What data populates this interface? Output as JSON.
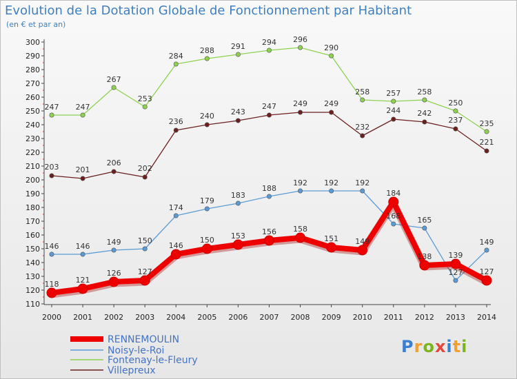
{
  "title": "Evolution de la Dotation Globale de Fonctionnement par Habitant",
  "subtitle": "(en € et par an)",
  "logo": {
    "text": "Proxiti"
  },
  "colors": {
    "RENNEMOULIN": "#ee0000",
    "Noisy-le-Roi": "#5b9bd5",
    "Fontenay-le-Fleury": "#8ed14f",
    "Villepreux": "#6b1f1f",
    "legend_text": "#4472c4",
    "title": "#3f7fbd"
  },
  "chart_data": {
    "type": "line",
    "title": "Evolution de la Dotation Globale de Fonctionnement par Habitant",
    "xlabel": "",
    "ylabel": "",
    "x": [
      "2000",
      "2001",
      "2002",
      "2003",
      "2004",
      "2005",
      "2006",
      "2007",
      "2008",
      "2009",
      "2010",
      "2011",
      "2012",
      "2013",
      "2014"
    ],
    "ylim": [
      110,
      300
    ],
    "yticks": [
      110,
      120,
      130,
      140,
      150,
      160,
      170,
      180,
      190,
      200,
      210,
      220,
      230,
      240,
      250,
      260,
      270,
      280,
      290,
      300
    ],
    "grid": false,
    "legend_position": "bottom-left",
    "series": [
      {
        "name": "RENNEMOULIN",
        "values": [
          118,
          121,
          126,
          127,
          146,
          150,
          153,
          156,
          158,
          151,
          149,
          184,
          138,
          139,
          127
        ]
      },
      {
        "name": "Noisy-le-Roi",
        "values": [
          146,
          146,
          149,
          150,
          174,
          179,
          183,
          188,
          192,
          192,
          192,
          168,
          165,
          127,
          149
        ]
      },
      {
        "name": "Fontenay-le-Fleury",
        "values": [
          247,
          247,
          267,
          253,
          284,
          288,
          291,
          294,
          296,
          290,
          258,
          257,
          258,
          250,
          235
        ]
      },
      {
        "name": "Villepreux",
        "values": [
          203,
          201,
          206,
          202,
          236,
          240,
          243,
          247,
          249,
          249,
          232,
          244,
          242,
          237,
          221
        ]
      }
    ]
  }
}
